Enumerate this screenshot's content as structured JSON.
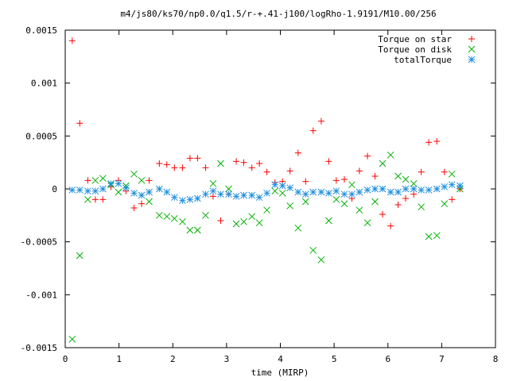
{
  "chart_data": {
    "type": "scatter",
    "title": "m4/js80/ks70/np0.0/q1.5/r-+.41-j100/logRho-1.9191/M10.00/256",
    "xlabel": "time (MIRP)",
    "ylabel": "",
    "xlim": [
      0,
      8
    ],
    "ylim": [
      -0.0015,
      0.0015
    ],
    "xticks": [
      0,
      1,
      2,
      3,
      4,
      5,
      6,
      7,
      8
    ],
    "xtick_labels": [
      "0",
      "1",
      "2",
      "3",
      "4",
      "5",
      "6",
      "7",
      "8"
    ],
    "yticks": [
      0.0015,
      0.001,
      0.0005,
      0,
      -0.0005,
      -0.001,
      -0.0015
    ],
    "ytick_labels": [
      "0.0015",
      "0.001",
      "0.0005",
      "0",
      "-0.0005",
      "-0.001",
      "-0.0015"
    ],
    "grid": false,
    "legend_position": "top-right",
    "series": [
      {
        "name": "Torque on star",
        "marker": "plus",
        "color": "#ff0000",
        "x": [
          0.13,
          0.27,
          0.42,
          0.56,
          0.7,
          0.85,
          0.99,
          1.13,
          1.28,
          1.42,
          1.56,
          1.75,
          1.89,
          2.03,
          2.18,
          2.32,
          2.46,
          2.61,
          2.75,
          2.89,
          3.04,
          3.18,
          3.32,
          3.47,
          3.61,
          3.75,
          3.9,
          4.04,
          4.18,
          4.33,
          4.47,
          4.61,
          4.76,
          4.9,
          5.04,
          5.19,
          5.33,
          5.47,
          5.62,
          5.76,
          5.9,
          6.05,
          6.19,
          6.33,
          6.48,
          6.62,
          6.76,
          6.91,
          7.05,
          7.19,
          7.34
        ],
        "y": [
          0.0014,
          0.00062,
          8e-05,
          -0.0001,
          -0.0001,
          2e-05,
          8e-05,
          -2e-05,
          -0.00018,
          -0.00014,
          8e-05,
          0.00024,
          0.00023,
          0.0002,
          0.0002,
          0.00029,
          0.00029,
          0.0002,
          -7e-05,
          -0.0003,
          -5e-05,
          0.00026,
          0.00025,
          0.0002,
          0.00024,
          0.00016,
          6e-05,
          7e-05,
          0.00017,
          0.00034,
          7e-05,
          0.00055,
          0.00064,
          0.00026,
          8e-05,
          9e-05,
          -9e-05,
          0.00017,
          0.00031,
          0.00012,
          -0.00024,
          -0.00035,
          -0.00015,
          -9e-05,
          -5e-05,
          0.00016,
          0.00044,
          0.00045,
          0.00016,
          -0.0001,
          0.0
        ]
      },
      {
        "name": "Torque on disk",
        "marker": "cross",
        "color": "#00b000",
        "x": [
          0.13,
          0.27,
          0.42,
          0.56,
          0.7,
          0.85,
          0.99,
          1.13,
          1.28,
          1.42,
          1.56,
          1.75,
          1.89,
          2.03,
          2.18,
          2.32,
          2.46,
          2.61,
          2.75,
          2.89,
          3.04,
          3.18,
          3.32,
          3.47,
          3.61,
          3.75,
          3.9,
          4.04,
          4.18,
          4.33,
          4.47,
          4.61,
          4.76,
          4.9,
          5.04,
          5.19,
          5.33,
          5.47,
          5.62,
          5.76,
          5.9,
          6.05,
          6.19,
          6.33,
          6.48,
          6.62,
          6.76,
          6.91,
          7.05,
          7.19,
          7.34
        ],
        "y": [
          -0.00142,
          -0.00063,
          -0.0001,
          8e-05,
          0.0001,
          4e-05,
          -3e-05,
          3e-05,
          0.00014,
          8e-05,
          -0.00012,
          -0.00025,
          -0.00026,
          -0.00028,
          -0.00031,
          -0.00039,
          -0.00039,
          -0.00025,
          5e-05,
          0.00024,
          0.0,
          -0.00033,
          -0.00031,
          -0.00026,
          -0.00032,
          -0.0002,
          -2e-05,
          -4e-05,
          -0.00016,
          -0.00037,
          -0.00012,
          -0.00058,
          -0.00067,
          -0.0003,
          -0.0001,
          -0.00014,
          4e-05,
          -0.0002,
          -0.00032,
          -0.00012,
          0.00024,
          0.00032,
          0.00012,
          9e-05,
          5e-05,
          -0.00017,
          -0.00045,
          -0.00044,
          -0.00014,
          0.00014,
          0.0
        ]
      },
      {
        "name": "totalTorque",
        "marker": "star",
        "color": "#1f8fdf",
        "x": [
          0.13,
          0.27,
          0.42,
          0.56,
          0.7,
          0.85,
          0.99,
          1.13,
          1.28,
          1.42,
          1.56,
          1.75,
          1.89,
          2.03,
          2.18,
          2.32,
          2.46,
          2.61,
          2.75,
          2.89,
          3.04,
          3.18,
          3.32,
          3.47,
          3.61,
          3.75,
          3.9,
          4.04,
          4.18,
          4.33,
          4.47,
          4.61,
          4.76,
          4.9,
          5.04,
          5.19,
          5.33,
          5.47,
          5.62,
          5.76,
          5.9,
          6.05,
          6.19,
          6.33,
          6.48,
          6.62,
          6.76,
          6.91,
          7.05,
          7.19,
          7.34
        ],
        "y": [
          -1e-05,
          -1e-05,
          -2e-05,
          -2e-05,
          0.0,
          5e-05,
          5e-05,
          1e-05,
          -4e-05,
          -6e-05,
          -3e-05,
          0.0,
          -3e-05,
          -8e-05,
          -0.00011,
          -0.0001,
          -9e-05,
          -5e-05,
          -2e-05,
          -5e-05,
          -5e-05,
          -7e-05,
          -6e-05,
          -6e-05,
          -8e-05,
          -4e-05,
          4e-05,
          3e-05,
          1e-05,
          -3e-05,
          -5e-05,
          -3e-05,
          -3e-05,
          -4e-05,
          -2e-05,
          -5e-05,
          -5e-05,
          -3e-05,
          -1e-05,
          0.0,
          0.0,
          -3e-05,
          -3e-05,
          0.0,
          0.0,
          -1e-05,
          -1e-05,
          0.0,
          2e-05,
          4e-05,
          3e-05
        ]
      }
    ]
  }
}
